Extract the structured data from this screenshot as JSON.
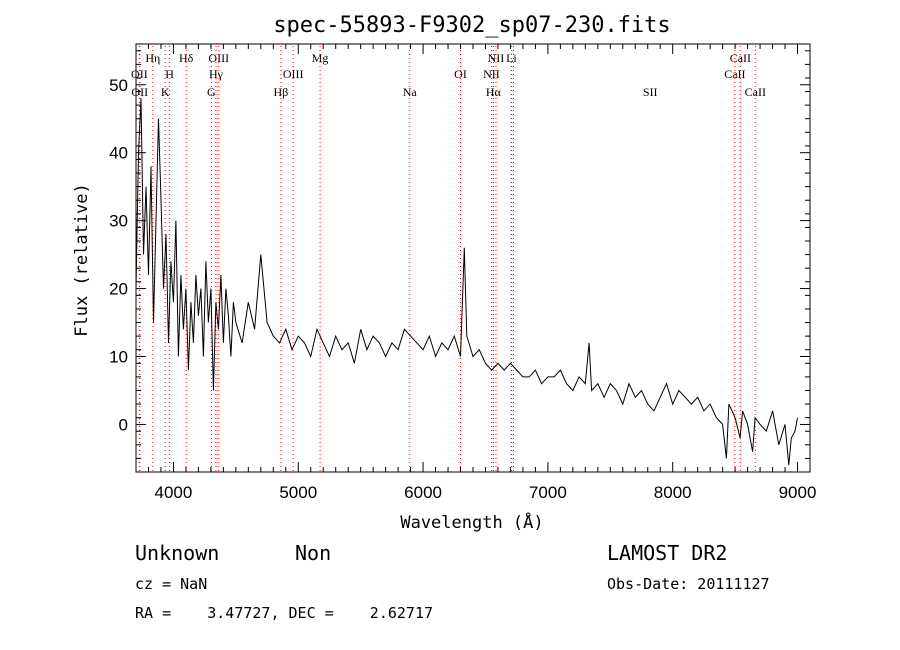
{
  "chart_data": {
    "type": "line",
    "title": "spec-55893-F9302_sp07-230.fits",
    "xlabel": "Wavelength (Å)",
    "ylabel": "Flux (relative)",
    "xlim": [
      3700,
      9100
    ],
    "ylim": [
      -7,
      56
    ],
    "xticks": [
      4000,
      5000,
      6000,
      7000,
      8000,
      9000
    ],
    "yticks": [
      0,
      10,
      20,
      30,
      40,
      50
    ],
    "grid": false,
    "line_color": "#000000",
    "marker_color": "#ff0000",
    "series": [
      {
        "x": [
          3700,
          3720,
          3740,
          3760,
          3780,
          3800,
          3820,
          3840,
          3860,
          3880,
          3900,
          3920,
          3940,
          3960,
          3980,
          4000,
          4020,
          4040,
          4060,
          4080,
          4100,
          4120,
          4140,
          4160,
          4180,
          4200,
          4220,
          4240,
          4260,
          4280,
          4300,
          4320,
          4340,
          4360,
          4380,
          4400,
          4420,
          4440,
          4460,
          4480,
          4500,
          4550,
          4600,
          4650,
          4700,
          4750,
          4800,
          4850,
          4900,
          4950,
          5000,
          5050,
          5100,
          5150,
          5200,
          5250,
          5300,
          5350,
          5400,
          5450,
          5500,
          5550,
          5600,
          5650,
          5700,
          5750,
          5800,
          5850,
          5900,
          5950,
          6000,
          6050,
          6100,
          6150,
          6200,
          6250,
          6300,
          6330,
          6350,
          6400,
          6450,
          6500,
          6550,
          6600,
          6650,
          6700,
          6750,
          6800,
          6850,
          6900,
          6950,
          7000,
          7050,
          7100,
          7150,
          7200,
          7250,
          7300,
          7330,
          7350,
          7400,
          7450,
          7500,
          7550,
          7600,
          7650,
          7700,
          7750,
          7800,
          7850,
          7900,
          7950,
          8000,
          8050,
          8100,
          8150,
          8200,
          8250,
          8300,
          8350,
          8400,
          8430,
          8450,
          8500,
          8540,
          8560,
          8600,
          8640,
          8660,
          8700,
          8750,
          8800,
          8850,
          8900,
          8930,
          8950,
          8980,
          9000
        ],
        "y": [
          20,
          40,
          48,
          25,
          35,
          22,
          38,
          15,
          30,
          45,
          33,
          20,
          28,
          12,
          24,
          18,
          30,
          10,
          22,
          14,
          20,
          8,
          18,
          12,
          22,
          16,
          20,
          10,
          24,
          15,
          20,
          5,
          18,
          14,
          22,
          12,
          20,
          16,
          10,
          18,
          15,
          12,
          18,
          14,
          25,
          15,
          13,
          12,
          14,
          11,
          13,
          12,
          10,
          14,
          12,
          10,
          13,
          11,
          12,
          9,
          14,
          11,
          13,
          12,
          10,
          12,
          11,
          14,
          13,
          12,
          11,
          13,
          10,
          12,
          11,
          13,
          10,
          26,
          13,
          10,
          11,
          9,
          8,
          9,
          8,
          9,
          8,
          7,
          7,
          8,
          6,
          7,
          7,
          8,
          6,
          5,
          7,
          6,
          12,
          5,
          6,
          4,
          6,
          5,
          3,
          6,
          4,
          5,
          3,
          2,
          4,
          6,
          3,
          5,
          4,
          3,
          4,
          2,
          3,
          1,
          0,
          -5,
          3,
          1,
          -2,
          2,
          0,
          -4,
          1,
          0,
          -1,
          2,
          -3,
          0,
          -6,
          -2,
          -1,
          1
        ]
      }
    ],
    "lines": [
      {
        "name": "OII",
        "wavelength": 3727,
        "row": 2
      },
      {
        "name": "OII",
        "wavelength": 3730,
        "row": 3
      },
      {
        "name": "Hη",
        "wavelength": 3835,
        "row": 1
      },
      {
        "name": "H",
        "wavelength": 3969,
        "row": 2
      },
      {
        "name": "K",
        "wavelength": 3934,
        "row": 3
      },
      {
        "name": "Hδ",
        "wavelength": 4102,
        "row": 1
      },
      {
        "name": "OIII",
        "wavelength": 4363,
        "row": 1
      },
      {
        "name": "Hγ",
        "wavelength": 4341,
        "row": 2
      },
      {
        "name": "G",
        "wavelength": 4304,
        "row": 3
      },
      {
        "name": "Mg",
        "wavelength": 5175,
        "row": 1
      },
      {
        "name": "OIII",
        "wavelength": 4959,
        "row": 2
      },
      {
        "name": "Hβ",
        "wavelength": 4861,
        "row": 3
      },
      {
        "name": "Na",
        "wavelength": 5893,
        "row": 3
      },
      {
        "name": "OI",
        "wavelength": 6300,
        "row": 2
      },
      {
        "name": "NII",
        "wavelength": 6584,
        "row": 1
      },
      {
        "name": "Li",
        "wavelength": 6708,
        "row": 1
      },
      {
        "name": "NII",
        "wavelength": 6548,
        "row": 2
      },
      {
        "name": "Hα",
        "wavelength": 6563,
        "row": 3
      },
      {
        "name": "SII",
        "wavelength": 6724,
        "row": 3,
        "label_x": 7820
      },
      {
        "name": "CaII",
        "wavelength": 8542,
        "row": 1
      },
      {
        "name": "CaII",
        "wavelength": 8498,
        "row": 2
      },
      {
        "name": "CaII",
        "wavelength": 8662,
        "row": 3
      }
    ]
  },
  "info": {
    "class_label": "Unknown",
    "subclass_label": "Non",
    "survey": "LAMOST DR2",
    "cz": "cz = NaN",
    "obs_date": "Obs-Date: 20111127",
    "coords": "RA =    3.47727, DEC =    2.62717"
  }
}
